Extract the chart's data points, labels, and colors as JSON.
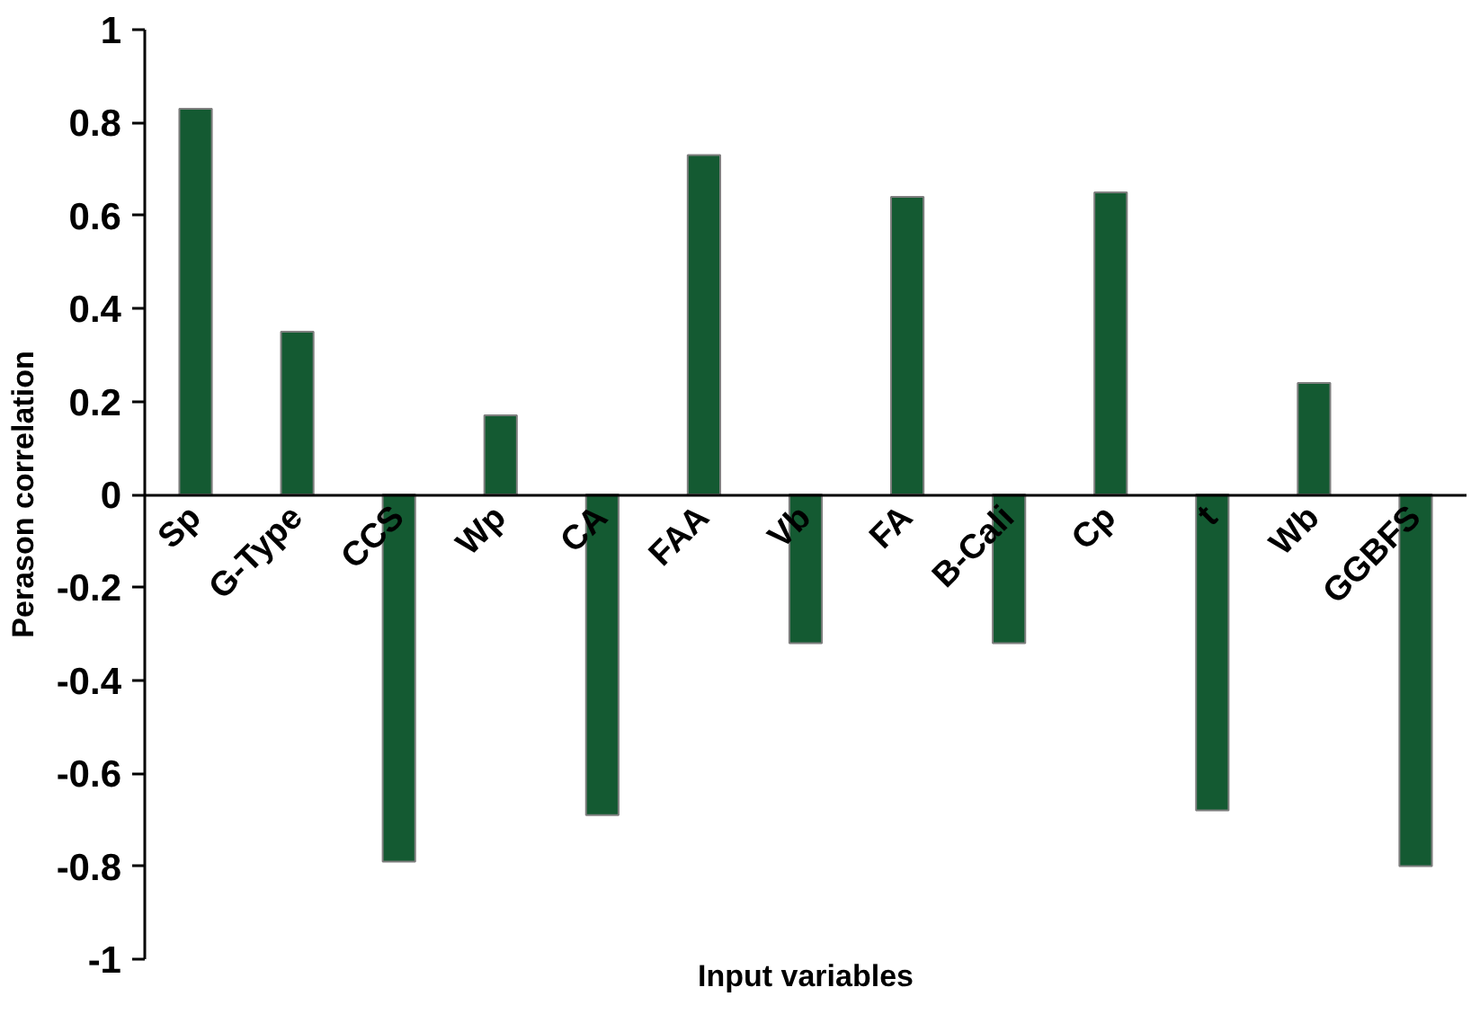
{
  "chart_data": {
    "type": "bar",
    "xlabel": "Input variables",
    "ylabel": "Perason correlation",
    "categories": [
      "Sp",
      "G-Type",
      "CCS",
      "Wp",
      "CA",
      "FAA",
      "Vb",
      "FA",
      "B-Cali",
      "Cp",
      "t",
      "Wb",
      "GGBFS"
    ],
    "values": [
      0.83,
      0.35,
      -0.79,
      0.17,
      -0.69,
      0.73,
      -0.32,
      0.64,
      -0.32,
      0.65,
      -0.68,
      0.24,
      -0.8
    ],
    "color": "#145a32",
    "ylim": [
      -1,
      1
    ],
    "yticks": [
      -1,
      -0.8,
      -0.6,
      -0.4,
      -0.2,
      0,
      0.2,
      0.4,
      0.6,
      0.8,
      1
    ]
  }
}
